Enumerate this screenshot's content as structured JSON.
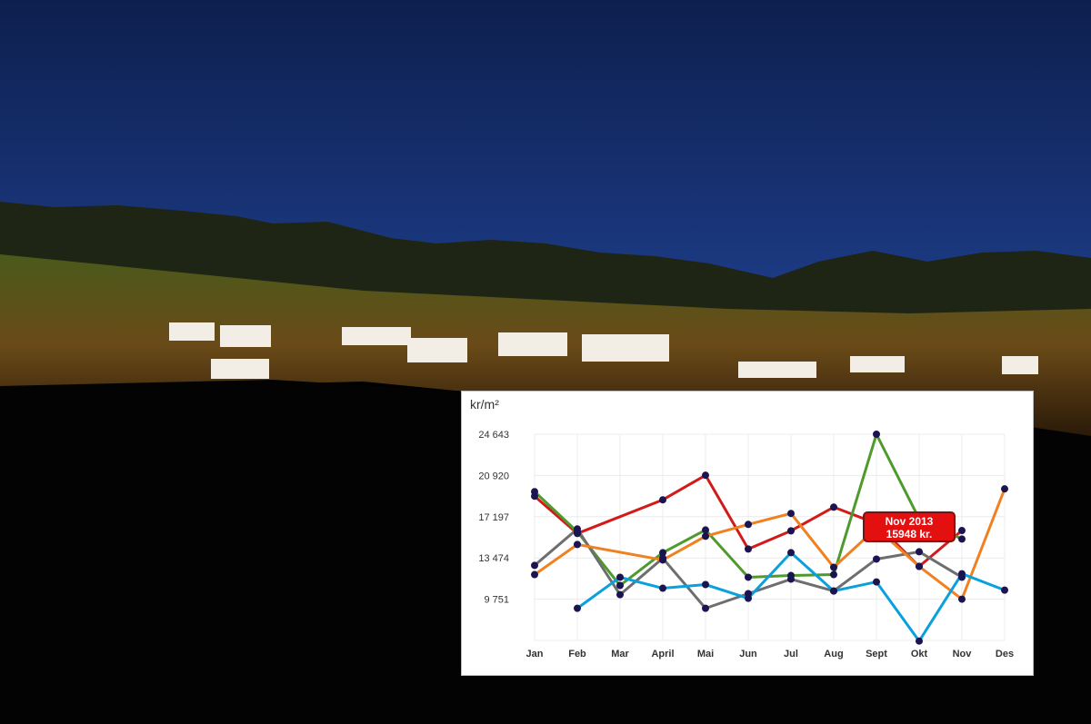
{
  "chart_data": {
    "type": "line",
    "ylabel": "kr/m²",
    "categories": [
      "Jan",
      "Feb",
      "Mar",
      "April",
      "Mai",
      "Jun",
      "Jul",
      "Aug",
      "Sept",
      "Okt",
      "Nov",
      "Des"
    ],
    "y_ticks": [
      "24 643",
      "20 920",
      "17 197",
      "13 474",
      "9 751"
    ],
    "ylim": [
      6028,
      24643
    ],
    "grid": true,
    "series": [
      {
        "color": "#d21a1a",
        "values": [
          19050,
          15680,
          null,
          18720,
          20940,
          14280,
          15920,
          18060,
          16580,
          12710,
          15948,
          null
        ]
      },
      {
        "color": "#4e9a2c",
        "values": [
          19460,
          15840,
          10990,
          13950,
          16000,
          11730,
          11890,
          11970,
          24643,
          17000,
          15180,
          null
        ]
      },
      {
        "color": "#6e6e6e",
        "values": [
          12800,
          16090,
          10160,
          13450,
          8930,
          10250,
          11560,
          10490,
          13370,
          14030,
          11730,
          null
        ]
      },
      {
        "color": "#f08020",
        "values": [
          11970,
          14690,
          null,
          13290,
          15430,
          16500,
          17490,
          12630,
          16170,
          12710,
          9751,
          19710
        ]
      },
      {
        "color": "#0aa0dc",
        "values": [
          null,
          8930,
          11730,
          10740,
          11070,
          9830,
          13950,
          10490,
          11310,
          5970,
          12050,
          10570
        ]
      }
    ],
    "point_color": "#1a1450",
    "tooltip": {
      "line1": "Nov 2013",
      "line2": "15948 kr.",
      "color": "#e4100f"
    }
  }
}
